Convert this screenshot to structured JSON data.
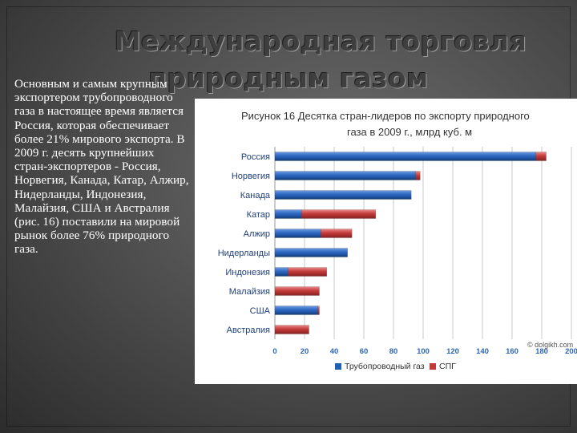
{
  "slide": {
    "title_line1": "Международная торговля",
    "title_line2": "природным газом",
    "body": "Основным и самым крупным экспортером трубопроводного газа в настоящее время является Россия, которая обеспечивает более 21% мирового экспорта. В 2009 г. десять крупнейших стран-экспортеров - Россия, Норвегия, Канада, Катар, Алжир, Нидерланды, Индонезия, Малайзия, США и Австралия (рис. 16) поставили на мировой рынок более 76% природного газа."
  },
  "chart_data": {
    "type": "bar",
    "orientation": "horizontal",
    "stacked": true,
    "title": "Рисунок 16 Десятка стран-лидеров по экспорту природного газа в 2009 г., млрд куб. м",
    "watermark": "© dolgikh.com",
    "categories": [
      "Россия",
      "Норвегия",
      "Канада",
      "Катар",
      "Алжир",
      "Нидерланды",
      "Индонезия",
      "Малайзия",
      "США",
      "Австралия"
    ],
    "series": [
      {
        "name": "Трубопроводный газ",
        "color": "#1f5fb4",
        "values": [
          176,
          95,
          92,
          18,
          31,
          49,
          9,
          0,
          29,
          0
        ]
      },
      {
        "name": "СПГ",
        "color": "#c43a3a",
        "values": [
          7,
          3,
          0,
          50,
          21,
          0,
          26,
          30,
          1,
          23
        ]
      }
    ],
    "xlim": [
      0,
      200
    ],
    "xticks": [
      0,
      20,
      40,
      60,
      80,
      100,
      120,
      140,
      160,
      180,
      200
    ],
    "xtick_labels": [
      "0",
      "20",
      "40",
      "60",
      "80",
      "100",
      "120",
      "140",
      "160",
      "180",
      "200"
    ],
    "grid": true,
    "legend_position": "bottom"
  }
}
